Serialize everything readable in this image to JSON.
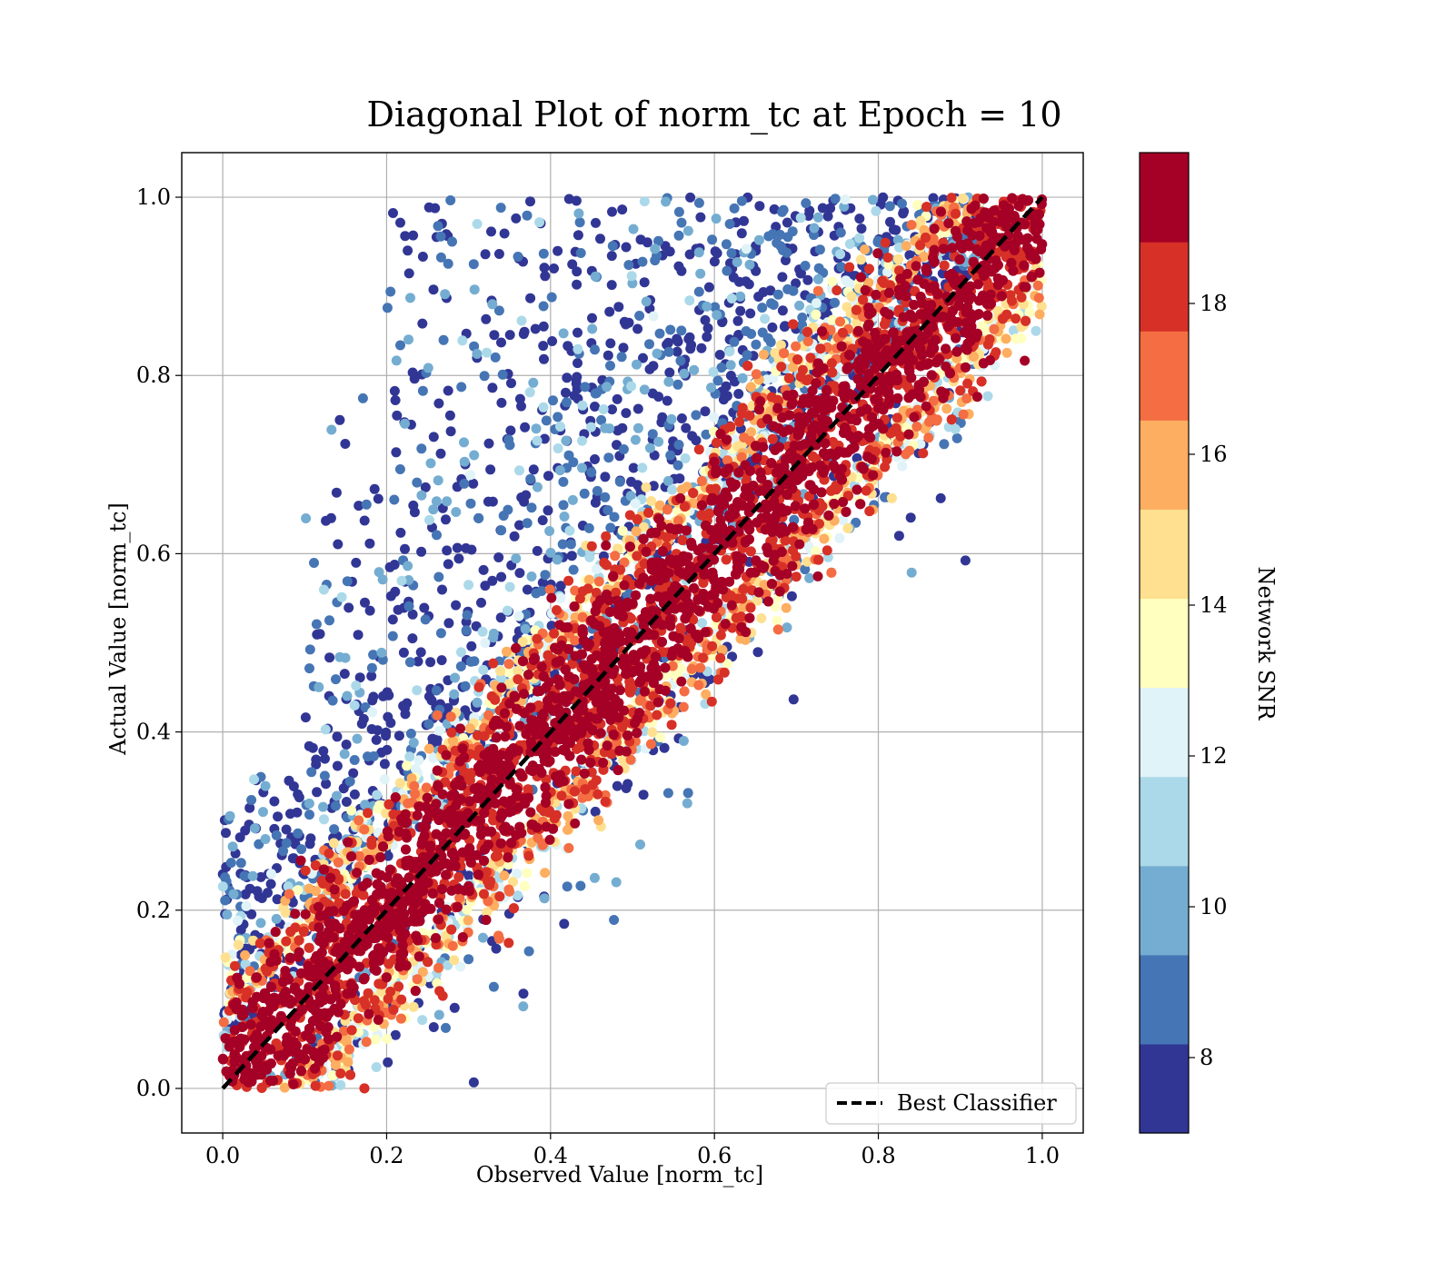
{
  "chart_data": {
    "type": "scatter",
    "title": "Diagonal Plot of norm_tc at Epoch = 10",
    "xlabel": "Observed Value [norm_tc]",
    "ylabel": "Actual Value [norm_tc]",
    "xlim": [
      -0.05,
      1.05
    ],
    "ylim": [
      -0.05,
      1.05
    ],
    "xticks": [
      "0.0",
      "0.2",
      "0.4",
      "0.6",
      "0.8",
      "1.0"
    ],
    "yticks": [
      "0.0",
      "0.2",
      "0.4",
      "0.6",
      "0.8",
      "1.0"
    ],
    "grid": true,
    "legend": {
      "position": "lower-right",
      "entries": [
        "Best Classifier"
      ]
    },
    "reference_line": {
      "name": "Best Classifier",
      "style": "dashed",
      "color": "#000000",
      "points": [
        [
          0,
          0
        ],
        [
          1,
          1
        ]
      ]
    },
    "colorbar": {
      "label": "Network SNR",
      "range": [
        7,
        20
      ],
      "ticks": [
        "8",
        "10",
        "12",
        "14",
        "16",
        "18"
      ],
      "bands": [
        "#313695",
        "#4575b4",
        "#74add1",
        "#abd9e9",
        "#e0f3f8",
        "#ffffbf",
        "#fee090",
        "#fdae61",
        "#f46d43",
        "#d73027",
        "#a50026"
      ]
    },
    "points_description_stats": {
      "distribution": "dense band along y = x, high-SNR (red) near diagonal, low-SNR (blue) scattered mostly above the diagonal",
      "band_halfwidth": 0.1
    }
  }
}
